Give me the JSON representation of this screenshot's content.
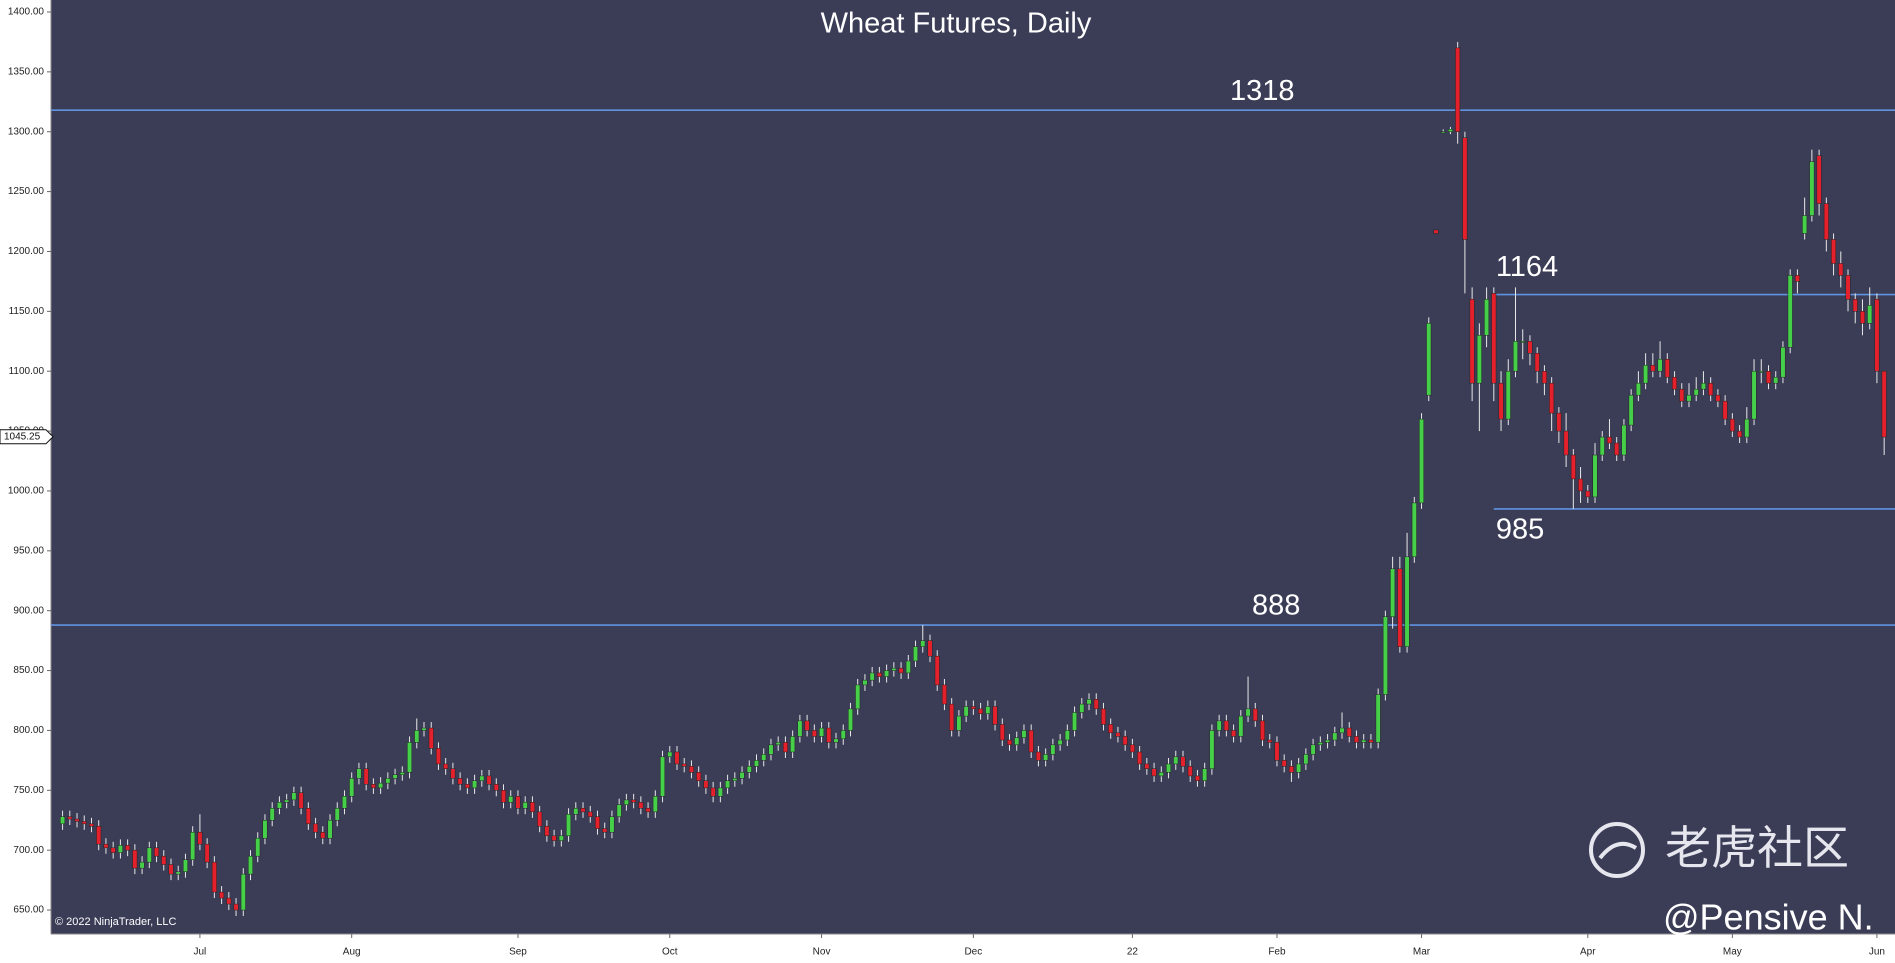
{
  "chart_data": {
    "type": "candlestick",
    "title": "Wheat Futures, Daily",
    "copyright": "© 2022 NinjaTrader, LLC",
    "watermark": "老虎社区",
    "author": "@Pensive N.",
    "up_color": "#46d04a",
    "down_color": "#e4202c",
    "level_color": "#5f93e0",
    "background": "#3b3d57",
    "ylim": [
      630,
      1410
    ],
    "yticks": [
      {
        "value": 650,
        "label": "650.00"
      },
      {
        "value": 700,
        "label": "700.00"
      },
      {
        "value": 750,
        "label": "750.00"
      },
      {
        "value": 800,
        "label": "800.00"
      },
      {
        "value": 850,
        "label": "850.00"
      },
      {
        "value": 900,
        "label": "900.00"
      },
      {
        "value": 950,
        "label": "950.00"
      },
      {
        "value": 1000,
        "label": "1000.00"
      },
      {
        "value": 1050,
        "label": "1050.00"
      },
      {
        "value": 1100,
        "label": "1100.00"
      },
      {
        "value": 1150,
        "label": "1150.00"
      },
      {
        "value": 1200,
        "label": "1200.00"
      },
      {
        "value": 1250,
        "label": "1250.00"
      },
      {
        "value": 1300,
        "label": "1300.00"
      },
      {
        "value": 1350,
        "label": "1350.00"
      },
      {
        "value": 1400,
        "label": "1400.00"
      }
    ],
    "xlim": [
      -1.6,
      253.5
    ],
    "xticks": [
      {
        "value": 19,
        "label": "Jul"
      },
      {
        "value": 40,
        "label": "Aug"
      },
      {
        "value": 63,
        "label": "Sep"
      },
      {
        "value": 84,
        "label": "Oct"
      },
      {
        "value": 105,
        "label": "Nov"
      },
      {
        "value": 126,
        "label": "Dec"
      },
      {
        "value": 148,
        "label": "22"
      },
      {
        "value": 168,
        "label": "Feb"
      },
      {
        "value": 188,
        "label": "Mar"
      },
      {
        "value": 211,
        "label": "Apr"
      },
      {
        "value": 231,
        "label": "May"
      },
      {
        "value": 251,
        "label": "Jun"
      }
    ],
    "last_price": 1045.25,
    "levels": [
      {
        "value": 1318
      },
      {
        "value": 888
      },
      {
        "value": 1164,
        "from": 198
      },
      {
        "value": 985,
        "from": 198
      }
    ],
    "ohlc": [
      [
        722,
        733,
        717,
        728
      ],
      [
        728,
        733,
        721,
        726
      ],
      [
        726,
        731,
        719,
        724
      ],
      [
        724,
        729,
        717,
        722
      ],
      [
        722,
        727,
        715,
        720
      ],
      [
        720,
        725,
        700,
        705
      ],
      [
        705,
        710,
        697,
        702
      ],
      [
        702,
        707,
        693,
        698
      ],
      [
        698,
        709,
        693,
        704
      ],
      [
        704,
        709,
        695,
        700
      ],
      [
        700,
        705,
        680,
        685
      ],
      [
        685,
        695,
        680,
        690
      ],
      [
        690,
        707,
        685,
        702
      ],
      [
        702,
        707,
        690,
        695
      ],
      [
        695,
        700,
        683,
        688
      ],
      [
        688,
        693,
        675,
        680
      ],
      [
        680,
        687,
        675,
        682
      ],
      [
        682,
        697,
        677,
        692
      ],
      [
        692,
        720,
        687,
        715
      ],
      [
        715,
        730,
        700,
        705
      ],
      [
        705,
        710,
        685,
        690
      ],
      [
        690,
        695,
        660,
        665
      ],
      [
        665,
        670,
        655,
        660
      ],
      [
        660,
        665,
        650,
        655
      ],
      [
        655,
        660,
        645,
        650
      ],
      [
        650,
        685,
        645,
        680
      ],
      [
        680,
        700,
        675,
        695
      ],
      [
        695,
        715,
        690,
        710
      ],
      [
        710,
        730,
        705,
        725
      ],
      [
        725,
        740,
        720,
        735
      ],
      [
        735,
        745,
        730,
        740
      ],
      [
        740,
        747,
        735,
        742
      ],
      [
        742,
        753,
        737,
        748
      ],
      [
        748,
        753,
        730,
        735
      ],
      [
        735,
        740,
        717,
        722
      ],
      [
        722,
        727,
        710,
        715
      ],
      [
        715,
        720,
        705,
        710
      ],
      [
        710,
        730,
        705,
        725
      ],
      [
        725,
        740,
        720,
        735
      ],
      [
        735,
        750,
        730,
        745
      ],
      [
        745,
        765,
        740,
        760
      ],
      [
        760,
        773,
        755,
        768
      ],
      [
        768,
        773,
        750,
        755
      ],
      [
        755,
        760,
        747,
        752
      ],
      [
        752,
        761,
        747,
        756
      ],
      [
        756,
        765,
        751,
        760
      ],
      [
        760,
        768,
        755,
        763
      ],
      [
        763,
        770,
        758,
        765
      ],
      [
        765,
        795,
        760,
        790
      ],
      [
        790,
        810,
        785,
        800
      ],
      [
        800,
        807,
        795,
        802
      ],
      [
        802,
        807,
        780,
        785
      ],
      [
        785,
        790,
        767,
        772
      ],
      [
        772,
        777,
        763,
        768
      ],
      [
        768,
        773,
        755,
        760
      ],
      [
        760,
        765,
        750,
        755
      ],
      [
        755,
        760,
        747,
        752
      ],
      [
        752,
        763,
        747,
        758
      ],
      [
        758,
        767,
        753,
        762
      ],
      [
        762,
        767,
        750,
        755
      ],
      [
        755,
        760,
        745,
        750
      ],
      [
        750,
        755,
        735,
        740
      ],
      [
        740,
        750,
        735,
        745
      ],
      [
        745,
        750,
        730,
        735
      ],
      [
        735,
        745,
        730,
        740
      ],
      [
        740,
        745,
        727,
        732
      ],
      [
        732,
        737,
        715,
        720
      ],
      [
        720,
        725,
        707,
        712
      ],
      [
        712,
        717,
        703,
        708
      ],
      [
        708,
        717,
        703,
        712
      ],
      [
        712,
        735,
        707,
        730
      ],
      [
        730,
        740,
        725,
        735
      ],
      [
        735,
        740,
        727,
        732
      ],
      [
        732,
        737,
        723,
        728
      ],
      [
        728,
        733,
        713,
        718
      ],
      [
        718,
        723,
        710,
        715
      ],
      [
        715,
        733,
        710,
        728
      ],
      [
        728,
        743,
        723,
        738
      ],
      [
        738,
        747,
        733,
        742
      ],
      [
        742,
        747,
        735,
        740
      ],
      [
        740,
        745,
        730,
        735
      ],
      [
        735,
        740,
        727,
        732
      ],
      [
        732,
        750,
        727,
        745
      ],
      [
        745,
        783,
        740,
        778
      ],
      [
        778,
        787,
        773,
        782
      ],
      [
        782,
        787,
        767,
        772
      ],
      [
        772,
        777,
        765,
        770
      ],
      [
        770,
        775,
        760,
        765
      ],
      [
        765,
        770,
        753,
        758
      ],
      [
        758,
        763,
        747,
        752
      ],
      [
        752,
        757,
        740,
        745
      ],
      [
        745,
        757,
        740,
        752
      ],
      [
        752,
        763,
        747,
        758
      ],
      [
        758,
        765,
        753,
        760
      ],
      [
        760,
        770,
        755,
        765
      ],
      [
        765,
        775,
        760,
        770
      ],
      [
        770,
        780,
        765,
        775
      ],
      [
        775,
        785,
        770,
        780
      ],
      [
        780,
        793,
        775,
        788
      ],
      [
        788,
        795,
        783,
        790
      ],
      [
        790,
        795,
        777,
        782
      ],
      [
        782,
        800,
        777,
        795
      ],
      [
        795,
        813,
        790,
        808
      ],
      [
        808,
        813,
        795,
        800
      ],
      [
        800,
        805,
        790,
        795
      ],
      [
        795,
        807,
        790,
        802
      ],
      [
        802,
        807,
        785,
        790
      ],
      [
        790,
        798,
        785,
        793
      ],
      [
        793,
        805,
        788,
        800
      ],
      [
        800,
        823,
        795,
        818
      ],
      [
        818,
        843,
        813,
        838
      ],
      [
        838,
        847,
        833,
        842
      ],
      [
        842,
        853,
        837,
        848
      ],
      [
        848,
        853,
        840,
        845
      ],
      [
        845,
        855,
        840,
        850
      ],
      [
        850,
        857,
        845,
        852
      ],
      [
        852,
        857,
        843,
        848
      ],
      [
        848,
        863,
        843,
        858
      ],
      [
        858,
        875,
        853,
        870
      ],
      [
        870,
        888,
        865,
        875
      ],
      [
        875,
        880,
        857,
        862
      ],
      [
        862,
        867,
        833,
        838
      ],
      [
        838,
        843,
        817,
        822
      ],
      [
        822,
        827,
        795,
        800
      ],
      [
        800,
        817,
        795,
        812
      ],
      [
        812,
        825,
        807,
        820
      ],
      [
        820,
        825,
        813,
        818
      ],
      [
        818,
        823,
        809,
        814
      ],
      [
        814,
        825,
        809,
        820
      ],
      [
        820,
        825,
        800,
        805
      ],
      [
        805,
        810,
        787,
        792
      ],
      [
        792,
        797,
        783,
        788
      ],
      [
        788,
        799,
        783,
        794
      ],
      [
        794,
        805,
        789,
        800
      ],
      [
        800,
        805,
        777,
        782
      ],
      [
        782,
        787,
        770,
        775
      ],
      [
        775,
        785,
        770,
        780
      ],
      [
        780,
        793,
        775,
        788
      ],
      [
        788,
        797,
        783,
        792
      ],
      [
        792,
        805,
        787,
        800
      ],
      [
        800,
        820,
        795,
        815
      ],
      [
        815,
        827,
        810,
        822
      ],
      [
        822,
        831,
        817,
        826
      ],
      [
        826,
        831,
        813,
        818
      ],
      [
        818,
        823,
        800,
        805
      ],
      [
        805,
        810,
        793,
        798
      ],
      [
        798,
        803,
        790,
        795
      ],
      [
        795,
        800,
        783,
        788
      ],
      [
        788,
        793,
        777,
        782
      ],
      [
        782,
        787,
        767,
        772
      ],
      [
        772,
        777,
        763,
        768
      ],
      [
        768,
        773,
        757,
        762
      ],
      [
        762,
        770,
        757,
        765
      ],
      [
        765,
        777,
        760,
        772
      ],
      [
        772,
        783,
        767,
        778
      ],
      [
        778,
        783,
        765,
        770
      ],
      [
        770,
        775,
        757,
        762
      ],
      [
        762,
        767,
        753,
        758
      ],
      [
        758,
        773,
        753,
        768
      ],
      [
        768,
        805,
        763,
        800
      ],
      [
        800,
        813,
        795,
        808
      ],
      [
        808,
        813,
        795,
        800
      ],
      [
        800,
        805,
        790,
        795
      ],
      [
        795,
        817,
        790,
        812
      ],
      [
        812,
        845,
        807,
        818
      ],
      [
        818,
        823,
        803,
        808
      ],
      [
        808,
        813,
        787,
        792
      ],
      [
        792,
        797,
        785,
        790
      ],
      [
        790,
        795,
        770,
        775
      ],
      [
        775,
        780,
        765,
        770
      ],
      [
        770,
        775,
        757,
        765
      ],
      [
        765,
        777,
        760,
        772
      ],
      [
        772,
        785,
        767,
        780
      ],
      [
        780,
        793,
        775,
        788
      ],
      [
        788,
        795,
        783,
        790
      ],
      [
        790,
        797,
        785,
        792
      ],
      [
        792,
        803,
        787,
        798
      ],
      [
        798,
        815,
        793,
        802
      ],
      [
        802,
        807,
        790,
        795
      ],
      [
        795,
        800,
        785,
        790
      ],
      [
        790,
        797,
        785,
        792
      ],
      [
        792,
        797,
        785,
        790
      ],
      [
        790,
        835,
        785,
        830
      ],
      [
        830,
        900,
        825,
        895
      ],
      [
        895,
        945,
        885,
        935
      ],
      [
        935,
        945,
        865,
        870
      ],
      [
        870,
        965,
        865,
        945
      ],
      [
        945,
        995,
        940,
        990
      ],
      [
        990,
        1065,
        985,
        1060
      ],
      [
        1080,
        1145,
        1075,
        1140
      ],
      [
        1218,
        1218,
        1215,
        1215
      ],
      [
        1300,
        1302,
        1300,
        1300
      ],
      [
        1300,
        1304,
        1298,
        1302
      ],
      [
        1370,
        1375,
        1290,
        1300
      ],
      [
        1295,
        1300,
        1165,
        1210
      ],
      [
        1160,
        1170,
        1075,
        1090
      ],
      [
        1090,
        1140,
        1050,
        1130
      ],
      [
        1130,
        1170,
        1120,
        1160
      ],
      [
        1165,
        1170,
        1075,
        1090
      ],
      [
        1090,
        1100,
        1050,
        1060
      ],
      [
        1060,
        1110,
        1055,
        1100
      ],
      [
        1100,
        1170,
        1095,
        1125
      ],
      [
        1125,
        1135,
        1110,
        1125
      ],
      [
        1125,
        1130,
        1105,
        1115
      ],
      [
        1115,
        1120,
        1090,
        1100
      ],
      [
        1100,
        1105,
        1080,
        1090
      ],
      [
        1090,
        1095,
        1050,
        1065
      ],
      [
        1065,
        1070,
        1040,
        1050
      ],
      [
        1050,
        1065,
        1020,
        1030
      ],
      [
        1030,
        1035,
        985,
        1010
      ],
      [
        1010,
        1020,
        990,
        1000
      ],
      [
        1000,
        1005,
        990,
        995
      ],
      [
        995,
        1040,
        990,
        1030
      ],
      [
        1030,
        1050,
        1025,
        1045
      ],
      [
        1045,
        1060,
        1035,
        1040
      ],
      [
        1040,
        1045,
        1025,
        1030
      ],
      [
        1030,
        1060,
        1025,
        1055
      ],
      [
        1055,
        1085,
        1050,
        1080
      ],
      [
        1080,
        1100,
        1075,
        1090
      ],
      [
        1090,
        1115,
        1085,
        1105
      ],
      [
        1105,
        1115,
        1095,
        1100
      ],
      [
        1100,
        1125,
        1095,
        1110
      ],
      [
        1110,
        1115,
        1090,
        1095
      ],
      [
        1095,
        1100,
        1080,
        1085
      ],
      [
        1085,
        1090,
        1070,
        1075
      ],
      [
        1075,
        1090,
        1070,
        1080
      ],
      [
        1080,
        1095,
        1075,
        1085
      ],
      [
        1085,
        1100,
        1080,
        1090
      ],
      [
        1090,
        1095,
        1075,
        1080
      ],
      [
        1080,
        1085,
        1070,
        1075
      ],
      [
        1075,
        1080,
        1055,
        1060
      ],
      [
        1060,
        1065,
        1045,
        1050
      ],
      [
        1050,
        1055,
        1040,
        1045
      ],
      [
        1045,
        1070,
        1040,
        1060
      ],
      [
        1060,
        1110,
        1055,
        1100
      ],
      [
        1100,
        1110,
        1090,
        1100
      ],
      [
        1100,
        1105,
        1085,
        1090
      ],
      [
        1090,
        1100,
        1085,
        1095
      ],
      [
        1095,
        1125,
        1090,
        1120
      ],
      [
        1120,
        1185,
        1115,
        1180
      ],
      [
        1180,
        1185,
        1165,
        1175
      ],
      [
        1215,
        1245,
        1210,
        1230
      ],
      [
        1230,
        1285,
        1225,
        1275
      ],
      [
        1280,
        1285,
        1230,
        1240
      ],
      [
        1240,
        1245,
        1200,
        1210
      ],
      [
        1210,
        1215,
        1180,
        1190
      ],
      [
        1190,
        1200,
        1170,
        1180
      ],
      [
        1180,
        1185,
        1150,
        1160
      ],
      [
        1160,
        1165,
        1140,
        1150
      ],
      [
        1150,
        1160,
        1130,
        1140
      ],
      [
        1140,
        1170,
        1135,
        1155
      ],
      [
        1160,
        1165,
        1090,
        1100
      ],
      [
        1100,
        1100,
        1030,
        1045
      ]
    ]
  }
}
